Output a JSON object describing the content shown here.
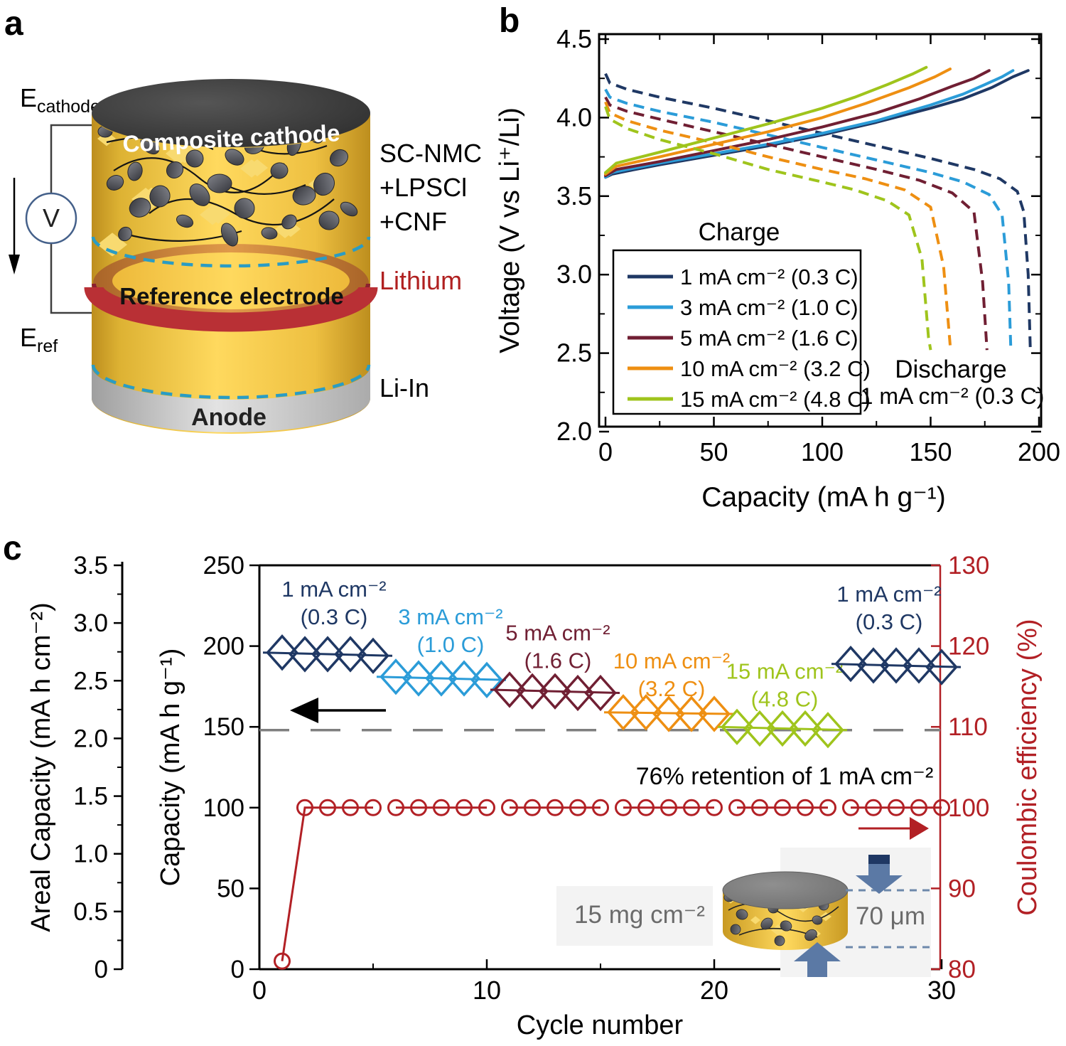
{
  "panels": {
    "a": {
      "label": "a",
      "electrode_labels": {
        "cathode_main": "E",
        "cathode_sub": "cathode",
        "ref_main": "E",
        "ref_sub": "ref"
      },
      "voltmeter": "V",
      "cylinder": {
        "top": "Composite cathode",
        "middle": "Reference electrode",
        "bottom": "Anode"
      },
      "side": {
        "line1": "SC-NMC",
        "line2": "+LPSCl",
        "line3": "+CNF",
        "lithium": "Lithium",
        "li_in": "Li-In"
      }
    },
    "b": {
      "label": "b"
    },
    "c": {
      "label": "c"
    }
  },
  "colors": {
    "navy": "#1f3864",
    "blue": "#2b9cd8",
    "maroon": "#701f33",
    "orange": "#ee8f12",
    "green": "#9fc41c",
    "ce_red": "#b22025",
    "gray_dash": "#7f7f7f",
    "cyan_dash": "#2a9cc4",
    "lithium_red": "#b02020",
    "inset_arrow": "#5b79a5",
    "inset_arrow_dark": "#1f3864",
    "inset_text": "#6b6b6b"
  },
  "chart_data": [
    {
      "panel": "b",
      "type": "line",
      "xlabel": "Capacity (mA h g⁻¹)",
      "ylabel": "Voltage (V vs Li⁺/Li)",
      "xlim": [
        0,
        200
      ],
      "ylim": [
        2.0,
        4.5
      ],
      "xticks": [
        "0",
        "50",
        "100",
        "150",
        "200"
      ],
      "yticks": [
        "2.0",
        "2.5",
        "3.0",
        "3.5",
        "4.0",
        "4.5"
      ],
      "grid": false,
      "legend_position": "lower left",
      "legend_title": "Charge",
      "discharge_note_line1": "Discharge",
      "discharge_note_line2": "1 mA cm⁻² (0.3 C)",
      "series": [
        {
          "name": "1 mA cm⁻² (0.3 C)",
          "color": "#1f3864",
          "charge": [
            [
              0,
              3.62
            ],
            [
              3,
              3.64
            ],
            [
              10,
              3.66
            ],
            [
              25,
              3.7
            ],
            [
              50,
              3.76
            ],
            [
              75,
              3.82
            ],
            [
              100,
              3.89
            ],
            [
              125,
              3.97
            ],
            [
              150,
              4.06
            ],
            [
              165,
              4.12
            ],
            [
              178,
              4.19
            ],
            [
              188,
              4.26
            ],
            [
              195,
              4.3
            ]
          ],
          "discharge": [
            [
              0,
              4.28
            ],
            [
              2,
              4.22
            ],
            [
              10,
              4.18
            ],
            [
              25,
              4.13
            ],
            [
              50,
              4.06
            ],
            [
              75,
              3.98
            ],
            [
              100,
              3.9
            ],
            [
              125,
              3.82
            ],
            [
              150,
              3.74
            ],
            [
              170,
              3.67
            ],
            [
              182,
              3.61
            ],
            [
              190,
              3.53
            ],
            [
              193,
              3.4
            ],
            [
              195,
              3.0
            ],
            [
              196,
              2.52
            ]
          ]
        },
        {
          "name": "3 mA cm⁻² (1.0 C)",
          "color": "#2b9cd8",
          "charge": [
            [
              0,
              3.62
            ],
            [
              3,
              3.65
            ],
            [
              10,
              3.67
            ],
            [
              25,
              3.71
            ],
            [
              50,
              3.77
            ],
            [
              75,
              3.83
            ],
            [
              100,
              3.9
            ],
            [
              125,
              3.98
            ],
            [
              150,
              4.08
            ],
            [
              165,
              4.15
            ],
            [
              175,
              4.21
            ],
            [
              183,
              4.26
            ],
            [
              188,
              4.3
            ]
          ],
          "discharge": [
            [
              0,
              4.18
            ],
            [
              2,
              4.13
            ],
            [
              10,
              4.09
            ],
            [
              25,
              4.04
            ],
            [
              50,
              3.97
            ],
            [
              75,
              3.89
            ],
            [
              100,
              3.81
            ],
            [
              125,
              3.73
            ],
            [
              150,
              3.65
            ],
            [
              165,
              3.59
            ],
            [
              177,
              3.51
            ],
            [
              183,
              3.38
            ],
            [
              186,
              2.95
            ],
            [
              187,
              2.52
            ]
          ]
        },
        {
          "name": "5 mA cm⁻² (1.6 C)",
          "color": "#701f33",
          "charge": [
            [
              0,
              3.63
            ],
            [
              5,
              3.67
            ],
            [
              25,
              3.72
            ],
            [
              50,
              3.79
            ],
            [
              75,
              3.86
            ],
            [
              100,
              3.94
            ],
            [
              125,
              4.03
            ],
            [
              145,
              4.12
            ],
            [
              160,
              4.2
            ],
            [
              170,
              4.25
            ],
            [
              177,
              4.3
            ]
          ],
          "discharge": [
            [
              0,
              4.13
            ],
            [
              2,
              4.08
            ],
            [
              10,
              4.04
            ],
            [
              25,
              3.99
            ],
            [
              50,
              3.91
            ],
            [
              75,
              3.83
            ],
            [
              100,
              3.75
            ],
            [
              125,
              3.67
            ],
            [
              145,
              3.6
            ],
            [
              160,
              3.52
            ],
            [
              170,
              3.4
            ],
            [
              174,
              2.95
            ],
            [
              176,
              2.52
            ]
          ]
        },
        {
          "name": "10 mA cm⁻² (3.2 C)",
          "color": "#ee8f12",
          "charge": [
            [
              0,
              3.64
            ],
            [
              5,
              3.69
            ],
            [
              25,
              3.75
            ],
            [
              50,
              3.83
            ],
            [
              75,
              3.91
            ],
            [
              100,
              4.0
            ],
            [
              120,
              4.09
            ],
            [
              140,
              4.19
            ],
            [
              152,
              4.26
            ],
            [
              159,
              4.31
            ]
          ],
          "discharge": [
            [
              0,
              4.1
            ],
            [
              2,
              4.03
            ],
            [
              10,
              3.98
            ],
            [
              25,
              3.92
            ],
            [
              50,
              3.84
            ],
            [
              75,
              3.75
            ],
            [
              100,
              3.67
            ],
            [
              120,
              3.61
            ],
            [
              138,
              3.54
            ],
            [
              150,
              3.43
            ],
            [
              156,
              3.05
            ],
            [
              159,
              2.55
            ]
          ]
        },
        {
          "name": "15 mA cm⁻² (4.8 C)",
          "color": "#9fc41c",
          "charge": [
            [
              0,
              3.65
            ],
            [
              5,
              3.71
            ],
            [
              25,
              3.78
            ],
            [
              50,
              3.87
            ],
            [
              75,
              3.96
            ],
            [
              100,
              4.06
            ],
            [
              115,
              4.13
            ],
            [
              130,
              4.21
            ],
            [
              142,
              4.28
            ],
            [
              148,
              4.32
            ]
          ],
          "discharge": [
            [
              0,
              4.07
            ],
            [
              2,
              3.99
            ],
            [
              10,
              3.93
            ],
            [
              25,
              3.86
            ],
            [
              50,
              3.77
            ],
            [
              75,
              3.67
            ],
            [
              100,
              3.59
            ],
            [
              115,
              3.54
            ],
            [
              130,
              3.47
            ],
            [
              140,
              3.38
            ],
            [
              146,
              3.1
            ],
            [
              149,
              2.6
            ],
            [
              150,
              2.52
            ]
          ]
        }
      ]
    },
    {
      "panel": "c",
      "type": "scatter",
      "xlabel": "Cycle number",
      "xlim": [
        0,
        30
      ],
      "xticks": [
        "0",
        "10",
        "20",
        "30"
      ],
      "xticks_minor": [
        5,
        15,
        25
      ],
      "areal_axis": {
        "label": "Areal Capacity (mA h cm⁻²)",
        "lim": [
          0,
          3.5
        ],
        "ticks": [
          "0",
          "0.5",
          "1.0",
          "1.5",
          "2.0",
          "2.5",
          "3.0",
          "3.5"
        ]
      },
      "capacity_axis": {
        "label": "Capacity (mA h g⁻¹)",
        "lim": [
          0,
          250
        ],
        "ticks": [
          "0",
          "50",
          "100",
          "150",
          "200",
          "250"
        ]
      },
      "ce_axis": {
        "label": "Coulombic efficiency (%)",
        "lim": [
          80,
          130
        ],
        "ticks": [
          "80",
          "90",
          "100",
          "110",
          "120",
          "130"
        ]
      },
      "capacity_series": [
        {
          "label_line1": "1 mA cm⁻²",
          "label_line2": "(0.3 C)",
          "color": "#1f3864",
          "cycles": [
            1,
            2,
            3,
            4,
            5
          ],
          "values": [
            196,
            195,
            195,
            195,
            194
          ]
        },
        {
          "label_line1": "3 mA cm⁻²",
          "label_line2": "(1.0 C)",
          "color": "#2b9cd8",
          "cycles": [
            6,
            7,
            8,
            9,
            10
          ],
          "values": [
            181,
            180,
            180,
            180,
            179
          ]
        },
        {
          "label_line1": "5 mA cm⁻²",
          "label_line2": "(1.6 C)",
          "color": "#701f33",
          "cycles": [
            11,
            12,
            13,
            14,
            15
          ],
          "values": [
            173,
            172,
            172,
            171,
            171
          ]
        },
        {
          "label_line1": "10 mA cm⁻²",
          "label_line2": "(3.2 C)",
          "color": "#ee8f12",
          "cycles": [
            16,
            17,
            18,
            19,
            20
          ],
          "values": [
            159,
            159,
            158,
            158,
            158
          ]
        },
        {
          "label_line1": "15 mA cm⁻²",
          "label_line2": "(4.8 C)",
          "color": "#9fc41c",
          "cycles": [
            21,
            22,
            23,
            24,
            25
          ],
          "values": [
            150,
            149,
            149,
            149,
            148
          ]
        },
        {
          "label_line1": "1 mA cm⁻²",
          "label_line2": "(0.3 C)",
          "color": "#1f3864",
          "cycles": [
            26,
            27,
            28,
            29,
            30
          ],
          "values": [
            189,
            188,
            188,
            188,
            187
          ]
        }
      ],
      "ce_series": {
        "color": "#b22025",
        "groups": [
          {
            "cycles": [
              1,
              2,
              3,
              4,
              5
            ],
            "values": [
              81,
              100,
              100,
              100,
              100
            ]
          },
          {
            "cycles": [
              6,
              7,
              8,
              9,
              10
            ],
            "values": [
              100,
              100,
              100,
              100,
              100
            ]
          },
          {
            "cycles": [
              11,
              12,
              13,
              14,
              15
            ],
            "values": [
              100,
              100,
              100,
              100,
              100
            ]
          },
          {
            "cycles": [
              16,
              17,
              18,
              19,
              20
            ],
            "values": [
              100,
              100,
              100,
              100,
              100
            ]
          },
          {
            "cycles": [
              21,
              22,
              23,
              24,
              25
            ],
            "values": [
              100,
              100,
              100,
              100,
              100
            ]
          },
          {
            "cycles": [
              26,
              27,
              28,
              29,
              30
            ],
            "values": [
              100,
              100,
              100,
              100,
              100
            ]
          }
        ]
      },
      "retention_line": {
        "capacity": 148,
        "label": "76% retention of 1 mA cm⁻²",
        "color": "#7f7f7f"
      },
      "inset": {
        "mass": "15 mg cm⁻²",
        "thickness": "70 μm"
      }
    }
  ]
}
